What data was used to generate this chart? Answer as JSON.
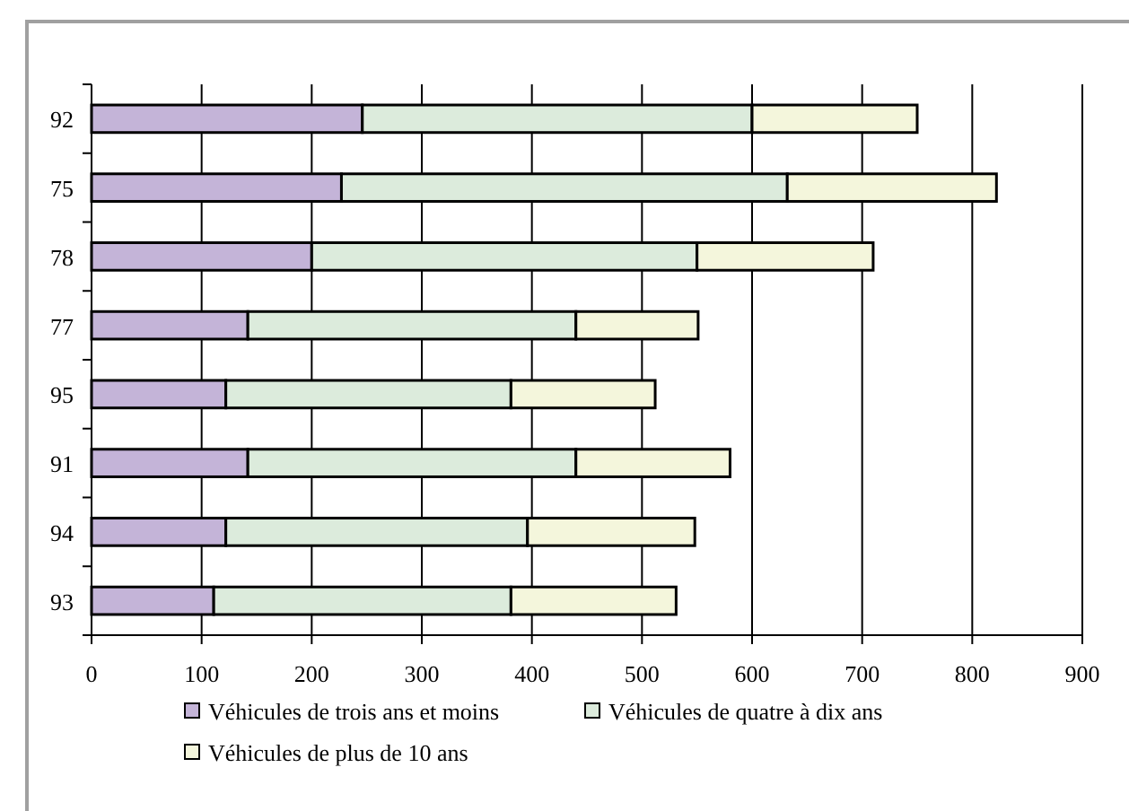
{
  "chart_data": {
    "type": "bar",
    "orientation": "horizontal",
    "stacked": true,
    "categories": [
      "92",
      "75",
      "78",
      "77",
      "95",
      "91",
      "94",
      "93"
    ],
    "series": [
      {
        "name": "Véhicules de trois ans et moins",
        "color": "#c4b4d8",
        "values": [
          246,
          227,
          200,
          142,
          122,
          142,
          122,
          111
        ]
      },
      {
        "name": "Véhicules de quatre à dix ans",
        "color": "#dcebdc",
        "values": [
          354,
          405,
          350,
          298,
          259,
          298,
          274,
          270
        ]
      },
      {
        "name": "Véhicules de plus de 10 ans",
        "color": "#f4f6dc",
        "values": [
          150,
          190,
          160,
          111,
          131,
          140,
          152,
          150
        ]
      }
    ],
    "xlim": [
      0,
      900
    ],
    "xticks": [
      0,
      100,
      200,
      300,
      400,
      500,
      600,
      700,
      800,
      900
    ],
    "grid": "x",
    "legend": "bottom"
  }
}
